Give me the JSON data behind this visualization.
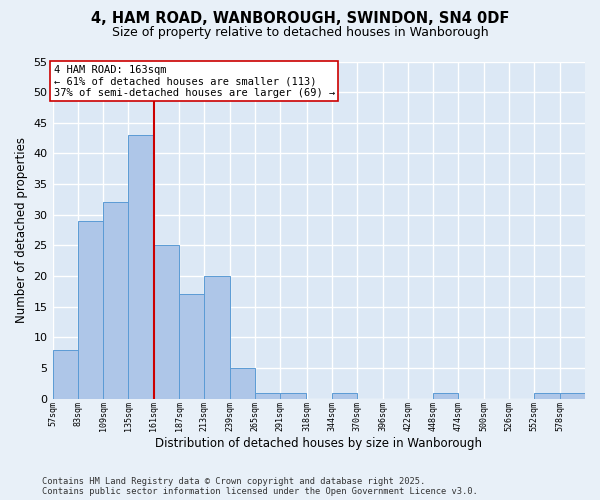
{
  "title_line1": "4, HAM ROAD, WANBOROUGH, SWINDON, SN4 0DF",
  "title_line2": "Size of property relative to detached houses in Wanborough",
  "xlabel": "Distribution of detached houses by size in Wanborough",
  "ylabel": "Number of detached properties",
  "footer_line1": "Contains HM Land Registry data © Crown copyright and database right 2025.",
  "footer_line2": "Contains public sector information licensed under the Open Government Licence v3.0.",
  "annotation_title": "4 HAM ROAD: 163sqm",
  "annotation_line2": "← 61% of detached houses are smaller (113)",
  "annotation_line3": "37% of semi-detached houses are larger (69) →",
  "bar_edges": [
    57,
    83,
    109,
    135,
    161,
    187,
    213,
    239,
    265,
    291,
    318,
    344,
    370,
    396,
    422,
    448,
    474,
    500,
    526,
    552,
    578
  ],
  "bar_heights": [
    8,
    29,
    32,
    43,
    25,
    17,
    20,
    5,
    1,
    1,
    0,
    1,
    0,
    0,
    0,
    1,
    0,
    0,
    0,
    1,
    1
  ],
  "bar_color": "#aec6e8",
  "bar_edge_color": "#5b9bd5",
  "vline_x": 161,
  "vline_color": "#cc0000",
  "ylim": [
    0,
    55
  ],
  "yticks": [
    0,
    5,
    10,
    15,
    20,
    25,
    30,
    35,
    40,
    45,
    50,
    55
  ],
  "bg_color": "#e8f0f8",
  "plot_bg_color": "#dce8f5",
  "grid_color": "#ffffff"
}
